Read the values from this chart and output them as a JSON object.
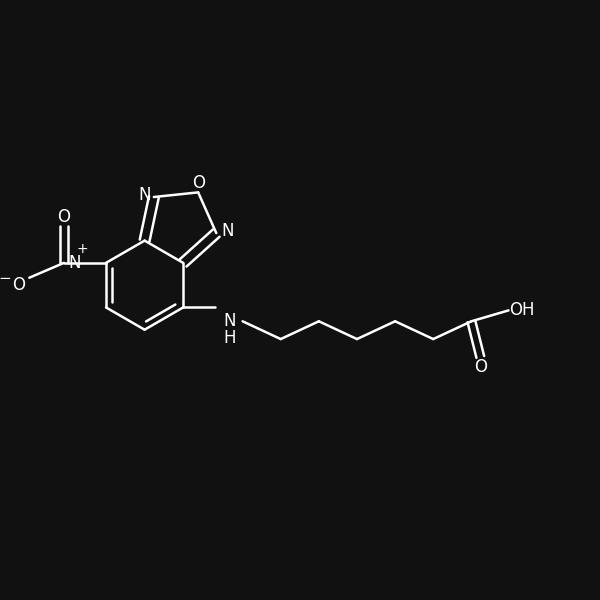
{
  "bg_color": "#111111",
  "line_color": "#ffffff",
  "line_width": 1.8,
  "font_size": 11,
  "fig_size": [
    6.0,
    6.0
  ],
  "dpi": 100,
  "xlim": [
    0,
    12
  ],
  "ylim": [
    0,
    12
  ]
}
